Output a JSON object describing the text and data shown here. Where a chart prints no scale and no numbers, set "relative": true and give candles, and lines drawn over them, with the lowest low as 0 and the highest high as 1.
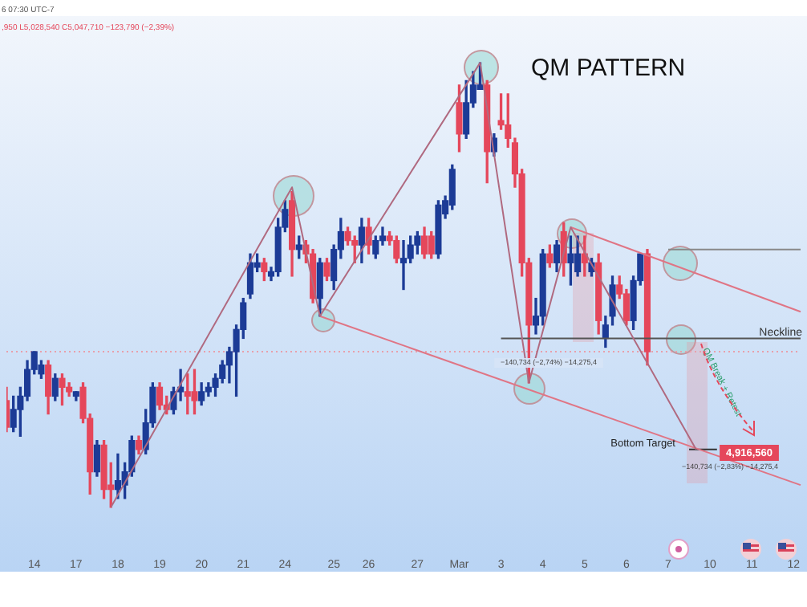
{
  "chart_data": {
    "type": "candlestick",
    "title": "QM PATTERN",
    "relative": true,
    "legend": false,
    "grid": false,
    "categories": [
      null,
      null,
      null,
      null,
      "14",
      null,
      null,
      null,
      null,
      null,
      "17",
      null,
      null,
      null,
      null,
      null,
      "18",
      null,
      null,
      null,
      null,
      null,
      "19",
      null,
      null,
      null,
      null,
      null,
      "20",
      null,
      null,
      null,
      null,
      null,
      "21",
      null,
      null,
      null,
      null,
      null,
      "24",
      null,
      null,
      null,
      null,
      null,
      null,
      "25",
      null,
      null,
      null,
      null,
      "26",
      null,
      null,
      null,
      null,
      null,
      null,
      "27",
      null,
      null,
      null,
      null,
      null,
      "Mar",
      null,
      null,
      null,
      null,
      null,
      "3",
      null,
      null,
      null,
      null,
      null,
      "4",
      null,
      null,
      null,
      null,
      null,
      "5",
      null,
      null,
      null,
      null,
      null,
      "6",
      null,
      null,
      null,
      null,
      null,
      "7",
      null,
      null,
      null,
      null,
      null,
      "10",
      null,
      null,
      null,
      null,
      null,
      "11",
      null,
      null,
      null,
      null,
      null,
      "12",
      null
    ],
    "ohlc": [
      [
        0.24,
        0.27,
        0.17,
        0.18
      ],
      [
        0.18,
        0.25,
        0.17,
        0.22
      ],
      [
        0.22,
        0.27,
        0.16,
        0.25
      ],
      [
        0.25,
        0.33,
        0.24,
        0.31
      ],
      [
        0.31,
        0.35,
        0.3,
        0.35
      ],
      [
        0.3,
        0.33,
        0.29,
        0.32
      ],
      [
        0.32,
        0.33,
        0.21,
        0.25
      ],
      [
        0.25,
        0.3,
        0.24,
        0.29
      ],
      [
        0.29,
        0.3,
        0.23,
        0.27
      ],
      [
        0.27,
        0.28,
        0.25,
        0.26
      ],
      [
        0.25,
        0.26,
        0.24,
        0.26
      ],
      [
        0.27,
        0.28,
        0.19,
        0.2
      ],
      [
        0.2,
        0.21,
        0.03,
        0.08
      ],
      [
        0.08,
        0.15,
        0.07,
        0.14
      ],
      [
        0.14,
        0.15,
        0.02,
        0.04
      ],
      [
        0.05,
        0.1,
        0,
        0.04
      ],
      [
        0.04,
        0.12,
        0.02,
        0.06
      ],
      [
        0.05,
        0.1,
        0.02,
        0.08
      ],
      [
        0.08,
        0.16,
        0.07,
        0.15
      ],
      [
        0.15,
        0.16,
        0.12,
        0.13
      ],
      [
        0.13,
        0.22,
        0.12,
        0.19
      ],
      [
        0.19,
        0.28,
        0.18,
        0.27
      ],
      [
        0.27,
        0.28,
        0.22,
        0.23
      ],
      [
        0.23,
        0.25,
        0.21,
        0.22
      ],
      [
        0.22,
        0.27,
        0.21,
        0.26
      ],
      [
        0.26,
        0.31,
        0.24,
        0.27
      ],
      [
        0.26,
        0.3,
        0.21,
        0.25
      ],
      [
        0.26,
        0.31,
        0.21,
        0.24
      ],
      [
        0.24,
        0.28,
        0.23,
        0.26
      ],
      [
        0.26,
        0.28,
        0.25,
        0.27
      ],
      [
        0.27,
        0.3,
        0.25,
        0.29
      ],
      [
        0.29,
        0.33,
        0.28,
        0.32
      ],
      [
        0.32,
        0.36,
        0.28,
        0.35
      ],
      [
        0.35,
        0.41,
        0.25,
        0.4
      ],
      [
        0.4,
        0.47,
        0.38,
        0.46
      ],
      [
        0.48,
        0.57,
        0.47,
        0.55
      ],
      [
        0.54,
        0.57,
        0.53,
        0.55
      ],
      [
        0.55,
        0.56,
        0.51,
        0.53
      ],
      [
        0.52,
        0.54,
        0.51,
        0.53
      ],
      [
        0.53,
        0.65,
        0.52,
        0.63
      ],
      [
        0.63,
        0.69,
        0.62,
        0.67
      ],
      [
        0.69,
        0.71,
        0.52,
        0.58
      ],
      [
        0.58,
        0.61,
        0.56,
        0.59
      ],
      [
        0.59,
        0.6,
        0.55,
        0.57
      ],
      [
        0.57,
        0.58,
        0.46,
        0.47
      ],
      [
        0.47,
        0.56,
        0.43,
        0.55
      ],
      [
        0.55,
        0.56,
        0.51,
        0.52
      ],
      [
        0.51,
        0.59,
        0.49,
        0.58
      ],
      [
        0.58,
        0.65,
        0.56,
        0.62
      ],
      [
        0.62,
        0.63,
        0.59,
        0.6
      ],
      [
        0.6,
        0.61,
        0.55,
        0.59
      ],
      [
        0.59,
        0.65,
        0.55,
        0.63
      ],
      [
        0.63,
        0.65,
        0.57,
        0.59
      ],
      [
        0.57,
        0.61,
        0.56,
        0.6
      ],
      [
        0.6,
        0.63,
        0.59,
        0.61
      ],
      [
        0.61,
        0.62,
        0.59,
        0.6
      ],
      [
        0.6,
        0.61,
        0.55,
        0.56
      ],
      [
        0.55,
        0.6,
        0.49,
        0.56
      ],
      [
        0.56,
        0.61,
        0.55,
        0.59
      ],
      [
        0.59,
        0.62,
        0.57,
        0.61
      ],
      [
        0.61,
        0.63,
        0.56,
        0.57
      ],
      [
        0.61,
        0.62,
        0.56,
        0.57
      ],
      [
        0.57,
        0.69,
        0.56,
        0.68
      ],
      [
        0.66,
        0.7,
        0.65,
        0.69
      ],
      [
        0.68,
        0.77,
        0.67,
        0.76
      ],
      [
        0.91,
        0.95,
        0.8,
        0.84
      ],
      [
        0.84,
        0.96,
        0.83,
        0.91
      ],
      [
        0.91,
        0.98,
        0.9,
        0.95
      ],
      [
        0.94,
        1,
        0.94,
        0.95
      ],
      [
        0.95,
        0.96,
        0.73,
        0.8
      ],
      [
        0.8,
        0.84,
        0.79,
        0.83
      ],
      [
        0.87,
        0.93,
        0.85,
        0.86
      ],
      [
        0.86,
        0.93,
        0.81,
        0.83
      ],
      [
        0.82,
        0.83,
        0.72,
        0.75
      ],
      [
        0.75,
        0.76,
        0.52,
        0.55
      ],
      [
        0.55,
        0.56,
        0.28,
        0.41
      ],
      [
        0.41,
        0.47,
        0.39,
        0.43
      ],
      [
        0.43,
        0.58,
        0.41,
        0.57
      ],
      [
        0.57,
        0.59,
        0.54,
        0.55
      ],
      [
        0.55,
        0.6,
        0.53,
        0.59
      ],
      [
        0.62,
        0.64,
        0.52,
        0.55
      ],
      [
        0.55,
        0.61,
        0.5,
        0.57
      ],
      [
        0.53,
        0.61,
        0.52,
        0.57
      ],
      [
        0.57,
        0.61,
        0.52,
        0.55
      ],
      [
        0.53,
        0.56,
        0.52,
        0.55
      ],
      [
        0.55,
        0.57,
        0.39,
        0.42
      ],
      [
        0.38,
        0.43,
        0.36,
        0.41
      ],
      [
        0.43,
        0.52,
        0.41,
        0.5
      ],
      [
        0.5,
        0.52,
        0.47,
        0.48
      ],
      [
        0.48,
        0.49,
        0.41,
        0.42
      ],
      [
        0.42,
        0.52,
        0.4,
        0.51
      ],
      [
        0.51,
        0.57,
        0.5,
        0.57
      ],
      [
        0.57,
        0.58,
        0.32,
        0.35
      ],
      null,
      null,
      null,
      null,
      null,
      null,
      null,
      null,
      null,
      null,
      null,
      null,
      null,
      null,
      null,
      null,
      null,
      null,
      null,
      null,
      null,
      null
    ],
    "colors": [
      "#e5475b",
      "#1c3b96",
      "#1c3b96",
      "#1c3b96",
      "#1c3b96",
      "#1c3b96",
      "#e5475b",
      "#1c3b96",
      "#e5475b",
      "#e5475b",
      "#1c3b96",
      "#e5475b",
      "#e5475b",
      "#1c3b96",
      "#e5475b",
      "#e5475b",
      "#1c3b96",
      "#1c3b96",
      "#1c3b96",
      "#e5475b",
      "#1c3b96",
      "#1c3b96",
      "#e5475b",
      "#e5475b",
      "#1c3b96",
      "#1c3b96",
      "#e5475b",
      "#e5475b",
      "#1c3b96",
      "#1c3b96",
      "#1c3b96",
      "#1c3b96",
      "#1c3b96",
      "#1c3b96",
      "#1c3b96",
      "#1c3b96",
      "#1c3b96",
      "#e5475b",
      "#1c3b96",
      "#1c3b96",
      "#1c3b96",
      "#e5475b",
      "#1c3b96",
      "#e5475b",
      "#e5475b",
      "#1c3b96",
      "#e5475b",
      "#1c3b96",
      "#1c3b96",
      "#e5475b",
      "#e5475b",
      "#1c3b96",
      "#e5475b",
      "#1c3b96",
      "#1c3b96",
      "#e5475b",
      "#e5475b",
      "#1c3b96",
      "#1c3b96",
      "#1c3b96",
      "#e5475b",
      "#e5475b",
      "#1c3b96",
      "#1c3b96",
      "#1c3b96",
      "#e5475b",
      "#1c3b96",
      "#1c3b96",
      "#1c3b96",
      "#e5475b",
      "#1c3b96",
      "#e5475b",
      "#e5475b",
      "#e5475b",
      "#e5475b",
      "#e5475b",
      "#1c3b96",
      "#1c3b96",
      "#e5475b",
      "#1c3b96",
      "#e5475b",
      "#1c3b96",
      "#1c3b96",
      "#e5475b",
      "#1c3b96",
      "#e5475b",
      "#1c3b96",
      "#1c3b96",
      "#e5475b",
      "#e5475b",
      "#1c3b96",
      "#1c3b96",
      "#e5475b",
      null,
      null,
      null,
      null,
      null,
      null,
      null,
      null,
      null,
      null,
      null,
      null,
      null,
      null,
      null,
      null,
      null,
      null,
      null,
      null,
      null,
      null
    ],
    "series": [
      {
        "type": "line",
        "color": "#b06a80",
        "values": [
          null,
          null,
          null,
          null,
          null,
          null,
          null,
          null,
          null,
          null,
          null,
          null,
          null,
          null,
          null,
          0,
          null,
          null,
          null,
          null,
          null,
          null,
          null,
          null,
          null,
          null,
          null,
          null,
          null,
          null,
          null,
          null,
          null,
          null,
          null,
          null,
          null,
          null,
          null,
          null,
          null,
          0.72,
          null,
          null,
          null,
          0.43,
          null,
          null,
          null,
          null,
          null,
          null,
          null,
          null,
          null,
          null,
          null,
          null,
          null,
          null,
          null,
          null,
          null,
          null,
          null,
          null,
          null,
          null,
          1,
          null,
          null,
          null,
          null,
          null,
          null,
          0.28,
          null,
          null,
          null,
          null,
          null,
          0.63,
          null,
          null,
          null,
          null,
          null,
          null,
          null,
          null,
          null,
          null,
          null,
          null,
          null,
          null,
          null,
          null,
          null,
          0.13,
          null,
          null,
          null,
          null,
          null,
          null,
          null,
          null,
          null,
          null,
          null,
          null,
          null,
          null,
          null
        ]
      },
      {
        "type": "line",
        "color": "#e07585",
        "values": [
          null,
          null,
          null,
          null,
          null,
          null,
          null,
          null,
          null,
          null,
          null,
          null,
          null,
          null,
          null,
          null,
          null,
          null,
          null,
          null,
          null,
          null,
          null,
          null,
          null,
          null,
          null,
          null,
          null,
          null,
          null,
          null,
          null,
          null,
          null,
          null,
          null,
          null,
          null,
          null,
          null,
          null,
          null,
          null,
          null,
          null,
          null,
          null,
          null,
          null,
          null,
          null,
          null,
          null,
          null,
          null,
          null,
          null,
          null,
          null,
          null,
          null,
          null,
          null,
          null,
          null,
          null,
          null,
          null,
          null,
          null,
          null,
          null,
          null,
          null,
          null,
          null,
          null,
          null,
          null,
          null,
          0.63,
          null,
          null,
          null,
          null,
          null,
          null,
          null,
          null,
          null,
          null,
          null,
          null,
          null,
          null,
          null,
          null,
          null,
          null,
          null,
          null,
          null,
          null,
          null,
          null,
          null,
          null,
          null,
          null,
          null,
          null,
          null,
          null,
          0.44
        ]
      },
      {
        "type": "line",
        "color": "#e07585",
        "values": [
          null,
          null,
          null,
          null,
          null,
          null,
          null,
          null,
          null,
          null,
          null,
          null,
          null,
          null,
          null,
          null,
          null,
          null,
          null,
          null,
          null,
          null,
          null,
          null,
          null,
          null,
          null,
          null,
          null,
          null,
          null,
          null,
          null,
          null,
          null,
          null,
          null,
          null,
          null,
          null,
          null,
          null,
          null,
          null,
          null,
          0.43,
          null,
          null,
          null,
          null,
          null,
          null,
          null,
          null,
          null,
          null,
          null,
          null,
          null,
          null,
          null,
          null,
          null,
          null,
          null,
          null,
          null,
          null,
          null,
          null,
          null,
          null,
          null,
          null,
          null,
          null,
          null,
          null,
          null,
          null,
          null,
          null,
          null,
          null,
          null,
          null,
          null,
          null,
          null,
          null,
          null,
          null,
          null,
          null,
          null,
          null,
          null,
          null,
          null,
          null,
          null,
          null,
          null,
          null,
          null,
          null,
          null,
          null,
          null,
          null,
          null,
          null,
          null,
          null,
          0.05
        ]
      },
      {
        "type": "line",
        "color": "#555555",
        "values": [
          null,
          null,
          null,
          null,
          null,
          null,
          null,
          null,
          null,
          null,
          null,
          null,
          null,
          null,
          null,
          null,
          null,
          null,
          null,
          null,
          null,
          null,
          null,
          null,
          null,
          null,
          null,
          null,
          null,
          null,
          null,
          null,
          null,
          null,
          null,
          null,
          null,
          null,
          null,
          null,
          null,
          null,
          null,
          null,
          null,
          null,
          null,
          null,
          null,
          null,
          null,
          null,
          null,
          null,
          null,
          null,
          null,
          null,
          null,
          null,
          null,
          null,
          null,
          null,
          null,
          null,
          null,
          null,
          null,
          null,
          null,
          0.38,
          null,
          null,
          null,
          null,
          null,
          null,
          null,
          null,
          null,
          null,
          null,
          null,
          null,
          null,
          null,
          null,
          null,
          null,
          null,
          null,
          null,
          null,
          null,
          null,
          null,
          null,
          null,
          null,
          null,
          null,
          null,
          null,
          null,
          null,
          null,
          null,
          null,
          null,
          null,
          null,
          null,
          null,
          0.38
        ]
      },
      {
        "type": "line",
        "color": "#888888",
        "values": [
          null,
          null,
          null,
          null,
          null,
          null,
          null,
          null,
          null,
          null,
          null,
          null,
          null,
          null,
          null,
          null,
          null,
          null,
          null,
          null,
          null,
          null,
          null,
          null,
          null,
          null,
          null,
          null,
          null,
          null,
          null,
          null,
          null,
          null,
          null,
          null,
          null,
          null,
          null,
          null,
          null,
          null,
          null,
          null,
          null,
          null,
          null,
          null,
          null,
          null,
          null,
          null,
          null,
          null,
          null,
          null,
          null,
          null,
          null,
          null,
          null,
          null,
          null,
          null,
          null,
          null,
          null,
          null,
          null,
          null,
          null,
          null,
          null,
          null,
          null,
          null,
          null,
          null,
          null,
          null,
          null,
          null,
          null,
          null,
          null,
          null,
          null,
          null,
          null,
          null,
          null,
          null,
          null,
          null,
          null,
          0.58,
          null,
          null,
          null,
          null,
          null,
          null,
          null,
          null,
          null,
          null,
          null,
          null,
          null,
          null,
          null,
          null,
          null,
          null,
          0.58
        ]
      },
      {
        "type": "line",
        "color": "#333333",
        "values": [
          null,
          null,
          null,
          null,
          null,
          null,
          null,
          null,
          null,
          null,
          null,
          null,
          null,
          null,
          null,
          null,
          null,
          null,
          null,
          null,
          null,
          null,
          null,
          null,
          null,
          null,
          null,
          null,
          null,
          null,
          null,
          null,
          null,
          null,
          null,
          null,
          null,
          null,
          null,
          null,
          null,
          null,
          null,
          null,
          null,
          null,
          null,
          null,
          null,
          null,
          null,
          null,
          null,
          null,
          null,
          null,
          null,
          null,
          null,
          null,
          null,
          null,
          null,
          null,
          null,
          null,
          null,
          null,
          null,
          null,
          null,
          null,
          null,
          null,
          null,
          null,
          null,
          null,
          null,
          null,
          null,
          null,
          null,
          null,
          null,
          null,
          null,
          null,
          null,
          null,
          null,
          null,
          null,
          null,
          null,
          null,
          null,
          null,
          0.13,
          null,
          null,
          null,
          0.13,
          null,
          null,
          null,
          null,
          null,
          null,
          null,
          null,
          null,
          null,
          null,
          null
        ]
      }
    ],
    "ref_lines": [
      {
        "axis": "y",
        "value": 0.35,
        "color": "#e8a0ab",
        "line_style": "dotted"
      }
    ],
    "annotations": [
      "Neckline",
      "Bottom Target",
      "4,916,560",
      "QM Break + Retest",
      "−140,734 (−2,74%) −14,275,4",
      "−140,734 (−2,83%) −14,275,4",
      "6 07:30 UTC-7",
      ",950 L5,028,540 C5,047,710 −123,790 (−2,39%)"
    ]
  }
}
